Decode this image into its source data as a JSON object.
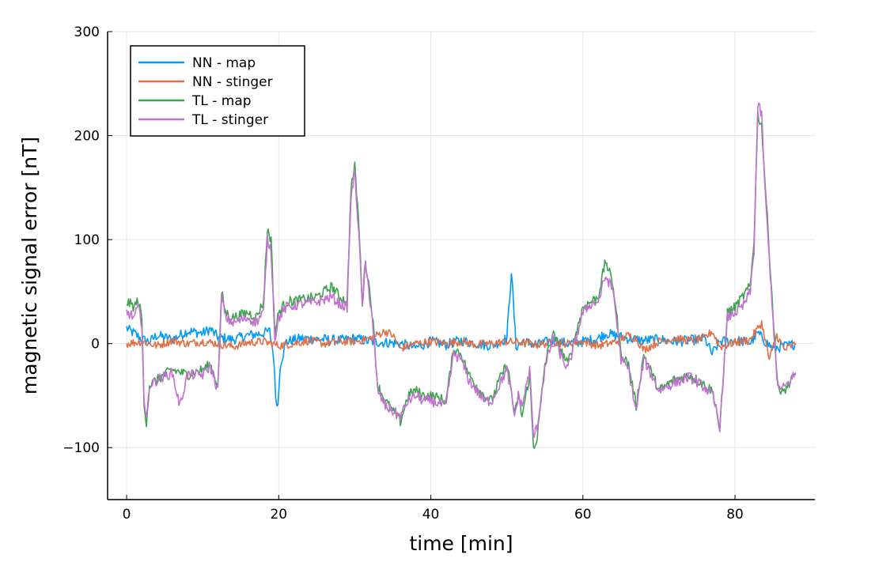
{
  "chart_data": {
    "type": "line",
    "title": "",
    "xlabel": "time [min]",
    "ylabel": "magnetic signal error [nT]",
    "xlim": [
      -2.5,
      90.5
    ],
    "ylim": [
      -150,
      300
    ],
    "xticks": [
      0,
      20,
      40,
      60,
      80
    ],
    "yticks": [
      -100,
      0,
      100,
      200,
      300
    ],
    "xtick_labels": [
      "0",
      "20",
      "40",
      "60",
      "80"
    ],
    "ytick_labels": [
      "−100",
      "0",
      "100",
      "200",
      "300"
    ],
    "grid": true,
    "legend_position": "top-left",
    "series": [
      {
        "name": "NN - map",
        "color": "#009af9",
        "x": [
          0,
          0.5,
          1,
          2,
          3,
          4,
          6,
          8,
          10,
          11,
          12,
          14,
          16,
          18,
          18.8,
          19.3,
          19.6,
          19.9,
          20.2,
          21,
          23,
          26,
          28,
          30,
          32,
          34,
          36,
          38,
          40,
          42,
          44,
          46,
          48,
          50,
          50.6,
          51.2,
          52,
          54,
          56,
          58,
          60,
          62,
          63,
          64,
          66,
          68,
          70,
          72,
          74,
          76,
          77,
          78,
          80,
          82,
          83,
          84,
          85,
          86,
          87,
          88
        ],
        "y": [
          15,
          12,
          10,
          4,
          2,
          8,
          4,
          12,
          10,
          14,
          6,
          4,
          8,
          10,
          12,
          -10,
          -50,
          -60,
          -20,
          2,
          5,
          4,
          3,
          5,
          2,
          1,
          0,
          -4,
          2,
          -1,
          3,
          0,
          -2,
          5,
          70,
          -3,
          2,
          -1,
          3,
          0,
          2,
          5,
          10,
          8,
          5,
          3,
          4,
          2,
          3,
          5,
          -10,
          2,
          3,
          1,
          10,
          2,
          -5,
          -3,
          -2,
          0
        ]
      },
      {
        "name": "NN - stinger",
        "color": "#e26f46",
        "x": [
          0,
          2,
          4,
          6,
          8,
          10,
          12,
          14,
          16,
          18,
          20,
          22,
          24,
          26,
          28,
          30,
          32,
          34,
          35,
          36,
          37,
          38,
          40,
          42,
          44,
          46,
          48,
          50,
          52,
          54,
          56,
          58,
          60,
          62,
          64,
          66,
          67,
          68,
          70,
          72,
          74,
          76,
          77,
          78,
          80,
          82,
          83.5,
          84.5,
          85.5,
          86.5,
          88
        ],
        "y": [
          0,
          2,
          -2,
          3,
          0,
          2,
          0,
          -3,
          1,
          2,
          -2,
          0,
          3,
          0,
          2,
          2,
          5,
          12,
          8,
          -5,
          -2,
          0,
          2,
          0,
          2,
          -1,
          0,
          2,
          1,
          -1,
          1,
          0,
          2,
          -2,
          1,
          8,
          5,
          -6,
          2,
          5,
          3,
          5,
          12,
          -3,
          1,
          4,
          20,
          -15,
          8,
          -6,
          0
        ]
      },
      {
        "name": "TL - map",
        "color": "#3da44d",
        "x": [
          0,
          0.5,
          1,
          1.5,
          2,
          2.3,
          2.6,
          3,
          4,
          6,
          8,
          10,
          11,
          12,
          12.5,
          13,
          14,
          16,
          17,
          18,
          18.5,
          19,
          19.5,
          20,
          21,
          23,
          25,
          27,
          28,
          29,
          29.5,
          30,
          30.5,
          31,
          31.4,
          31.8,
          32.3,
          33,
          34,
          35,
          36,
          37,
          38,
          39,
          40,
          42,
          43,
          44,
          45,
          46,
          47,
          48,
          49,
          50,
          50.5,
          51,
          51.5,
          52,
          53,
          53.5,
          54,
          55,
          56,
          57,
          58,
          60,
          61,
          62,
          63,
          64,
          65,
          66,
          67,
          68,
          70,
          72,
          74,
          76,
          77,
          77.5,
          78,
          79,
          80,
          81,
          82,
          82.5,
          83,
          83.5,
          84,
          85,
          85.5,
          86,
          87,
          88
        ],
        "y": [
          40,
          38,
          35,
          42,
          25,
          -60,
          -75,
          -40,
          -35,
          -25,
          -30,
          -25,
          -20,
          -40,
          50,
          30,
          25,
          30,
          25,
          40,
          110,
          100,
          10,
          30,
          40,
          42,
          45,
          55,
          45,
          40,
          150,
          170,
          120,
          40,
          80,
          60,
          30,
          -40,
          -55,
          -65,
          -75,
          -50,
          -45,
          -50,
          -50,
          -55,
          -5,
          -10,
          -30,
          -40,
          -50,
          -55,
          -35,
          -20,
          -40,
          -70,
          -50,
          -70,
          -30,
          -100,
          -90,
          -20,
          10,
          -5,
          -20,
          35,
          40,
          45,
          80,
          55,
          -10,
          -20,
          -60,
          -10,
          -45,
          -35,
          -30,
          -40,
          -45,
          -60,
          -85,
          30,
          35,
          45,
          55,
          100,
          220,
          210,
          150,
          30,
          -30,
          -50,
          -40,
          -30
        ]
      },
      {
        "name": "TL - stinger",
        "color": "#c271d2",
        "x": [
          0,
          0.5,
          1,
          1.5,
          2,
          2.3,
          2.6,
          3,
          4,
          6,
          7,
          8,
          10,
          11,
          12,
          12.5,
          13,
          14,
          16,
          17,
          18,
          18.5,
          19,
          19.5,
          20,
          21,
          23,
          25,
          27,
          28,
          29,
          29.5,
          30,
          30.5,
          31,
          31.4,
          31.8,
          32.3,
          33,
          34,
          35,
          36,
          37,
          38,
          39,
          40,
          42,
          43,
          44,
          45,
          46,
          47,
          48,
          49,
          50,
          50.5,
          51,
          51.5,
          52,
          53,
          53.5,
          54,
          55,
          56,
          57,
          58,
          60,
          61,
          62,
          63,
          64,
          65,
          66,
          67,
          68,
          70,
          72,
          74,
          76,
          77,
          77.5,
          78,
          79,
          80,
          81,
          82,
          82.5,
          83,
          83.5,
          84,
          85,
          85.5,
          86,
          87,
          88
        ],
        "y": [
          30,
          28,
          25,
          35,
          20,
          -55,
          -75,
          -40,
          -35,
          -28,
          -60,
          -30,
          -30,
          -22,
          -45,
          45,
          25,
          20,
          25,
          20,
          30,
          100,
          90,
          5,
          25,
          35,
          38,
          40,
          45,
          38,
          35,
          140,
          165,
          110,
          35,
          75,
          55,
          25,
          -45,
          -60,
          -65,
          -70,
          -55,
          -50,
          -55,
          -55,
          -60,
          -10,
          -15,
          -35,
          -45,
          -55,
          -55,
          -40,
          -25,
          -45,
          -70,
          -50,
          -60,
          -25,
          -90,
          -80,
          -25,
          5,
          -10,
          -25,
          30,
          38,
          40,
          65,
          50,
          -15,
          -25,
          -65,
          -15,
          -45,
          -38,
          -32,
          -42,
          -50,
          -62,
          -80,
          25,
          30,
          35,
          50,
          90,
          230,
          220,
          140,
          25,
          -35,
          -45,
          -38,
          -28
        ]
      }
    ]
  }
}
